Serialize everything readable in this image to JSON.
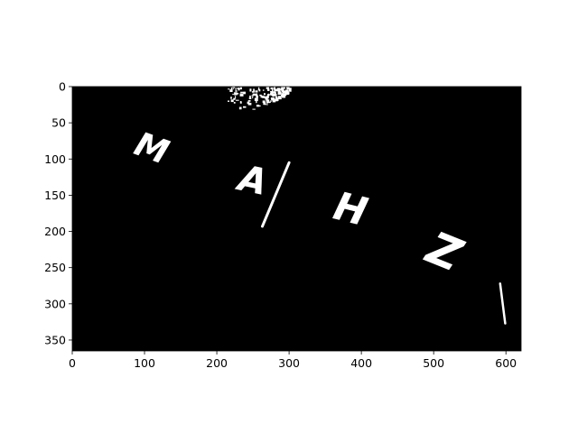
{
  "chart_data": {
    "type": "image",
    "title": "",
    "xlabel": "",
    "ylabel": "",
    "xlim": [
      0,
      621
    ],
    "ylim": [
      365,
      0
    ],
    "y_inverted": true,
    "background_color": "#000000",
    "foreground_color": "#ffffff",
    "x_ticks": [
      0,
      100,
      200,
      300,
      400,
      500,
      600
    ],
    "y_ticks": [
      0,
      50,
      100,
      150,
      200,
      250,
      300,
      350
    ],
    "letters": [
      {
        "text": "M",
        "x": 110,
        "y": 85,
        "rotation": 20,
        "size": 46
      },
      {
        "text": "A",
        "x": 250,
        "y": 130,
        "rotation": 12,
        "size": 50
      },
      {
        "text": "H",
        "x": 385,
        "y": 170,
        "rotation": 14,
        "size": 54
      },
      {
        "text": "Z",
        "x": 515,
        "y": 228,
        "rotation": 22,
        "size": 62
      }
    ],
    "strokes": [
      {
        "x1": 300,
        "y1": 105,
        "x2": 263,
        "y2": 193,
        "width": 3
      },
      {
        "x1": 592,
        "y1": 272,
        "x2": 599,
        "y2": 327,
        "width": 2.5
      }
    ],
    "blob": {
      "x_min": 215,
      "x_max": 300,
      "y_min": 0,
      "y_max": 36
    }
  }
}
